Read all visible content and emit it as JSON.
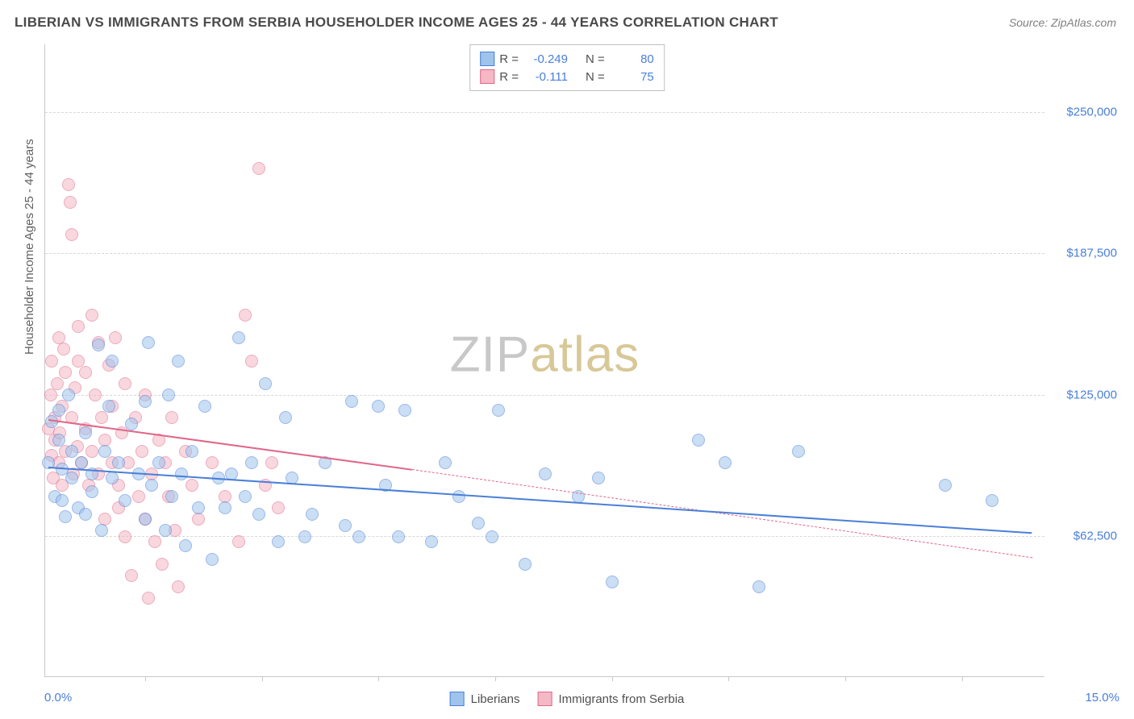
{
  "title": "LIBERIAN VS IMMIGRANTS FROM SERBIA HOUSEHOLDER INCOME AGES 25 - 44 YEARS CORRELATION CHART",
  "source": "Source: ZipAtlas.com",
  "ylabel": "Householder Income Ages 25 - 44 years",
  "watermark_part1": "ZIP",
  "watermark_part2": "atlas",
  "chart": {
    "type": "scatter",
    "xlim": [
      0,
      15
    ],
    "ylim": [
      0,
      280000
    ],
    "x_tick_positions": [
      1.5,
      3.25,
      5.0,
      6.75,
      8.5,
      10.25,
      12.0,
      13.75
    ],
    "y_grid": [
      62500,
      125000,
      187500,
      250000
    ],
    "y_tick_labels": [
      "$62,500",
      "$125,000",
      "$187,500",
      "$250,000"
    ],
    "x_min_label": "0.0%",
    "x_max_label": "15.0%",
    "background_color": "#ffffff",
    "grid_color": "#d8d8d8",
    "axis_color": "#c8c8c8",
    "marker_radius": 8,
    "marker_border_width": 1.2,
    "series": [
      {
        "name": "Liberians",
        "fill": "#9fc4ec",
        "fill_opacity": 0.55,
        "stroke": "#4a7fd8",
        "r_value": "-0.249",
        "n_value": "80",
        "trend": {
          "x1": 0.05,
          "y1": 93000,
          "x2": 14.8,
          "y2": 64000,
          "width": 2.5,
          "dash": false
        },
        "points": [
          [
            0.05,
            95000
          ],
          [
            0.1,
            113000
          ],
          [
            0.15,
            80000
          ],
          [
            0.2,
            105000
          ],
          [
            0.2,
            118000
          ],
          [
            0.25,
            92000
          ],
          [
            0.25,
            78000
          ],
          [
            0.3,
            71000
          ],
          [
            0.35,
            125000
          ],
          [
            0.4,
            88000
          ],
          [
            0.4,
            100000
          ],
          [
            0.5,
            75000
          ],
          [
            0.55,
            95000
          ],
          [
            0.6,
            108000
          ],
          [
            0.6,
            72000
          ],
          [
            0.7,
            90000
          ],
          [
            0.7,
            82000
          ],
          [
            0.8,
            147000
          ],
          [
            0.85,
            65000
          ],
          [
            0.9,
            100000
          ],
          [
            0.95,
            120000
          ],
          [
            1.0,
            88000
          ],
          [
            1.0,
            140000
          ],
          [
            1.1,
            95000
          ],
          [
            1.2,
            78000
          ],
          [
            1.3,
            112000
          ],
          [
            1.4,
            90000
          ],
          [
            1.5,
            70000
          ],
          [
            1.5,
            122000
          ],
          [
            1.55,
            148000
          ],
          [
            1.6,
            85000
          ],
          [
            1.7,
            95000
          ],
          [
            1.8,
            65000
          ],
          [
            1.85,
            125000
          ],
          [
            1.9,
            80000
          ],
          [
            2.0,
            140000
          ],
          [
            2.05,
            90000
          ],
          [
            2.1,
            58000
          ],
          [
            2.2,
            100000
          ],
          [
            2.3,
            75000
          ],
          [
            2.4,
            120000
          ],
          [
            2.5,
            52000
          ],
          [
            2.6,
            88000
          ],
          [
            2.7,
            75000
          ],
          [
            2.8,
            90000
          ],
          [
            2.9,
            150000
          ],
          [
            3.0,
            80000
          ],
          [
            3.1,
            95000
          ],
          [
            3.2,
            72000
          ],
          [
            3.3,
            130000
          ],
          [
            3.5,
            60000
          ],
          [
            3.6,
            115000
          ],
          [
            3.7,
            88000
          ],
          [
            3.9,
            62000
          ],
          [
            4.0,
            72000
          ],
          [
            4.2,
            95000
          ],
          [
            4.5,
            67000
          ],
          [
            4.6,
            122000
          ],
          [
            4.7,
            62000
          ],
          [
            5.0,
            120000
          ],
          [
            5.1,
            85000
          ],
          [
            5.3,
            62000
          ],
          [
            5.4,
            118000
          ],
          [
            5.8,
            60000
          ],
          [
            6.0,
            95000
          ],
          [
            6.2,
            80000
          ],
          [
            6.5,
            68000
          ],
          [
            6.7,
            62000
          ],
          [
            6.8,
            118000
          ],
          [
            7.2,
            50000
          ],
          [
            7.5,
            90000
          ],
          [
            8.0,
            80000
          ],
          [
            8.3,
            88000
          ],
          [
            8.5,
            42000
          ],
          [
            9.8,
            105000
          ],
          [
            10.2,
            95000
          ],
          [
            10.7,
            40000
          ],
          [
            11.3,
            100000
          ],
          [
            13.5,
            85000
          ],
          [
            14.2,
            78000
          ]
        ]
      },
      {
        "name": "Immigrants from Serbia",
        "fill": "#f5b8c5",
        "fill_opacity": 0.55,
        "stroke": "#e06788",
        "r_value": "-0.111",
        "n_value": "75",
        "trend_solid": {
          "x1": 0.05,
          "y1": 114000,
          "x2": 5.5,
          "y2": 92000,
          "width": 2.5,
          "dash": false
        },
        "trend_dash": {
          "x1": 5.5,
          "y1": 92000,
          "x2": 14.8,
          "y2": 53000,
          "width": 1,
          "dash": true
        },
        "points": [
          [
            0.05,
            110000
          ],
          [
            0.08,
            125000
          ],
          [
            0.1,
            98000
          ],
          [
            0.1,
            140000
          ],
          [
            0.12,
            88000
          ],
          [
            0.15,
            115000
          ],
          [
            0.15,
            105000
          ],
          [
            0.18,
            130000
          ],
          [
            0.2,
            95000
          ],
          [
            0.2,
            150000
          ],
          [
            0.22,
            108000
          ],
          [
            0.25,
            120000
          ],
          [
            0.25,
            85000
          ],
          [
            0.28,
            145000
          ],
          [
            0.3,
            100000
          ],
          [
            0.3,
            135000
          ],
          [
            0.35,
            218000
          ],
          [
            0.37,
            210000
          ],
          [
            0.4,
            115000
          ],
          [
            0.4,
            196000
          ],
          [
            0.42,
            90000
          ],
          [
            0.45,
            128000
          ],
          [
            0.48,
            102000
          ],
          [
            0.5,
            140000
          ],
          [
            0.5,
            155000
          ],
          [
            0.55,
            95000
          ],
          [
            0.6,
            110000
          ],
          [
            0.6,
            135000
          ],
          [
            0.65,
            85000
          ],
          [
            0.7,
            160000
          ],
          [
            0.7,
            100000
          ],
          [
            0.75,
            125000
          ],
          [
            0.8,
            90000
          ],
          [
            0.8,
            148000
          ],
          [
            0.85,
            115000
          ],
          [
            0.9,
            105000
          ],
          [
            0.9,
            70000
          ],
          [
            0.95,
            138000
          ],
          [
            1.0,
            95000
          ],
          [
            1.0,
            120000
          ],
          [
            1.05,
            150000
          ],
          [
            1.1,
            85000
          ],
          [
            1.1,
            75000
          ],
          [
            1.15,
            108000
          ],
          [
            1.2,
            130000
          ],
          [
            1.2,
            62000
          ],
          [
            1.25,
            95000
          ],
          [
            1.3,
            45000
          ],
          [
            1.35,
            115000
          ],
          [
            1.4,
            80000
          ],
          [
            1.45,
            100000
          ],
          [
            1.5,
            70000
          ],
          [
            1.5,
            125000
          ],
          [
            1.55,
            35000
          ],
          [
            1.6,
            90000
          ],
          [
            1.65,
            60000
          ],
          [
            1.7,
            105000
          ],
          [
            1.75,
            50000
          ],
          [
            1.8,
            95000
          ],
          [
            1.85,
            80000
          ],
          [
            1.9,
            115000
          ],
          [
            1.95,
            65000
          ],
          [
            2.0,
            40000
          ],
          [
            2.1,
            100000
          ],
          [
            2.2,
            85000
          ],
          [
            2.3,
            70000
          ],
          [
            2.5,
            95000
          ],
          [
            2.7,
            80000
          ],
          [
            2.9,
            60000
          ],
          [
            3.0,
            160000
          ],
          [
            3.1,
            140000
          ],
          [
            3.2,
            225000
          ],
          [
            3.3,
            85000
          ],
          [
            3.4,
            95000
          ],
          [
            3.5,
            75000
          ]
        ]
      }
    ]
  },
  "legend_top": {
    "r_label": "R =",
    "n_label": "N ="
  },
  "legend_bottom": {
    "items": [
      "Liberians",
      "Immigrants from Serbia"
    ]
  }
}
